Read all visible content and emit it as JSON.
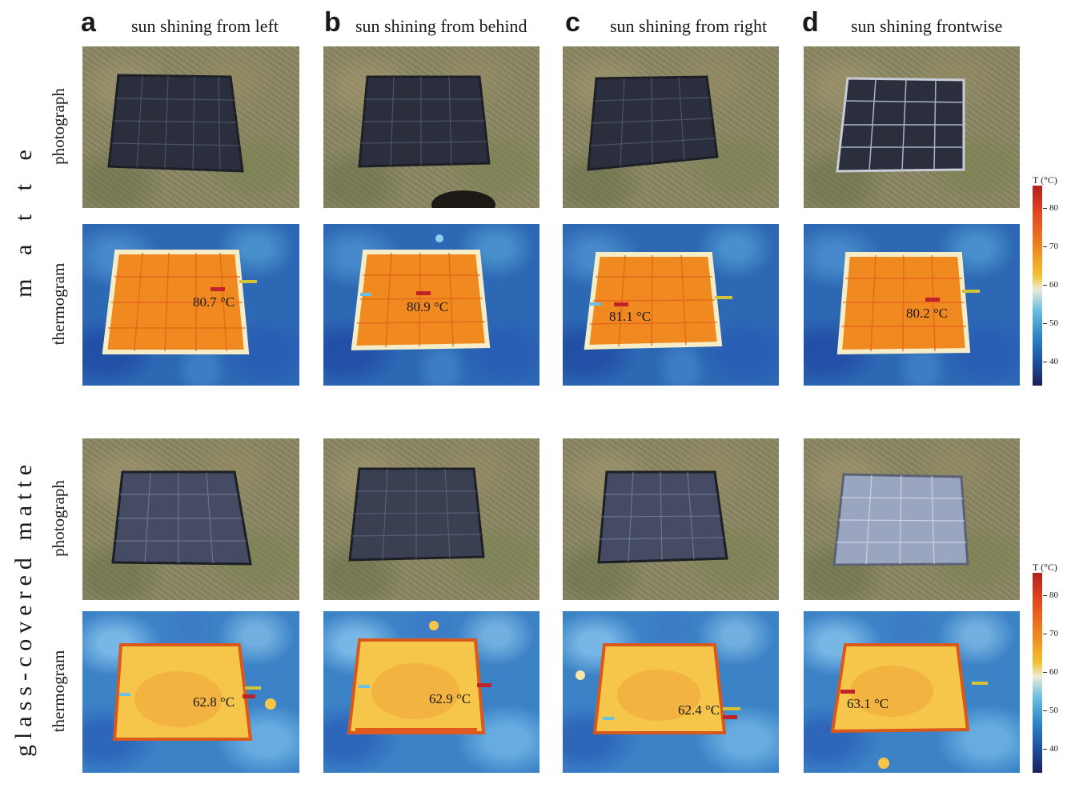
{
  "columns": [
    {
      "letter": "a",
      "title": "sun shining from left"
    },
    {
      "letter": "b",
      "title": "sun shining from behind"
    },
    {
      "letter": "c",
      "title": "sun shining from right"
    },
    {
      "letter": "d",
      "title": "sun shining frontwise"
    }
  ],
  "row_labels": {
    "photo": "photograph",
    "thermo": "thermogram"
  },
  "groups": {
    "top": "m a t t e",
    "bottom": "glass-covered matte"
  },
  "temperatures": {
    "matte": [
      "80.7 °C",
      "80.9 °C",
      "81.1 °C",
      "80.2 °C"
    ],
    "glass": [
      "62.8 °C",
      "62.9 °C",
      "62.4 °C",
      "63.1 °C"
    ]
  },
  "colorbar": {
    "title": "T (°C)",
    "ticks": [
      "80",
      "70",
      "60",
      "50",
      "40"
    ]
  },
  "colors": {
    "panel_dark": "#2b2f3d",
    "panel_light": "#9aa6bf",
    "thermo_matte": "#f08a20",
    "thermo_glass": "#f6c64a",
    "thermo_edge": "#d9581c"
  }
}
